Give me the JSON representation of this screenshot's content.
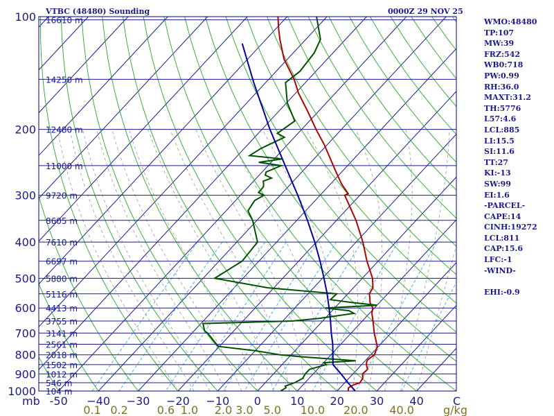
{
  "header": {
    "title": "VTBC (48480) Sounding",
    "timestamp": "0000Z 29 NOV 25"
  },
  "indices": [
    "WMO:48480",
    "TP:107",
    "MW:39",
    "FRZ:542",
    "WB0:718",
    "PW:0.99",
    "RH:36.0",
    "MAXT:31.2",
    "TH:5776",
    "L57:4.6",
    "LCL:885",
    "LI:15.5",
    "SI:11.6",
    "TT:27",
    "KI:-13",
    "SW:99",
    "EI:1.6",
    "-PARCEL-",
    "CAPE:14",
    "CINH:19272",
    "LCL:811",
    "CAP:15.6",
    "LFC:-1",
    "-WIND-",
    "",
    "EHI:-0.9"
  ],
  "chart_data": {
    "type": "line",
    "diagram": "skew-T log-P",
    "x_unit_label": "C",
    "y_unit_label": "mb",
    "x_ticks": [
      -50,
      -40,
      -30,
      -20,
      -10,
      0,
      10,
      20,
      30,
      40
    ],
    "x_tick_labels": [
      "-50",
      "−40",
      "−30",
      "−20",
      "−10",
      "0",
      "10",
      "20",
      "30",
      "40"
    ],
    "xlim": [
      -55,
      50
    ],
    "ylim": [
      1000,
      100
    ],
    "y_scale": "log",
    "pressure_ticks": [
      100,
      200,
      300,
      400,
      500,
      600,
      700,
      800,
      900,
      1000
    ],
    "mixing_ratio_labels": [
      "0.1",
      "0.2",
      "0.6",
      "1.0",
      "2.0",
      "3.0",
      "5.0",
      "10.0",
      "20.0",
      "40.0"
    ],
    "mixing_ratio_values": [
      0.1,
      0.2,
      0.6,
      1.0,
      2.0,
      3.0,
      5.0,
      10.0,
      20.0,
      40.0
    ],
    "mixing_ratio_unit": "g/kg",
    "height_labels": [
      {
        "p": 102,
        "label": "16610 m"
      },
      {
        "p": 147,
        "label": "14250 m"
      },
      {
        "p": 200,
        "label": "12480 m"
      },
      {
        "p": 250,
        "label": "11000 m"
      },
      {
        "p": 300,
        "label": "9720 m"
      },
      {
        "p": 350,
        "label": "8605 m"
      },
      {
        "p": 400,
        "label": "7610 m"
      },
      {
        "p": 450,
        "label": "6697 m"
      },
      {
        "p": 500,
        "label": "5880 m"
      },
      {
        "p": 550,
        "label": "5116 m"
      },
      {
        "p": 600,
        "label": "4413 m"
      },
      {
        "p": 650,
        "label": "3755 m"
      },
      {
        "p": 700,
        "label": "3141 m"
      },
      {
        "p": 750,
        "label": "2561 m"
      },
      {
        "p": 800,
        "label": "2018 m"
      },
      {
        "p": 850,
        "label": "1502 m"
      },
      {
        "p": 900,
        "label": "1012 m"
      },
      {
        "p": 950,
        "label": "546 m"
      },
      {
        "p": 1000,
        "label": "104 m"
      }
    ],
    "series": [
      {
        "color": "#b00000",
        "points": [
          [
            1000,
            22.8
          ],
          [
            980,
            22.1
          ],
          [
            965,
            22.6
          ],
          [
            950,
            23.8
          ],
          [
            925,
            23.5
          ],
          [
            900,
            22.4
          ],
          [
            875,
            22.6
          ],
          [
            850,
            21.2
          ],
          [
            835,
            20.6
          ],
          [
            825,
            20.4
          ],
          [
            800,
            20.9
          ],
          [
            785,
            20.5
          ],
          [
            760,
            19.7
          ],
          [
            700,
            15.8
          ],
          [
            650,
            12.7
          ],
          [
            620,
            10.6
          ],
          [
            600,
            9.6
          ],
          [
            580,
            7.6
          ],
          [
            560,
            6.2
          ],
          [
            550,
            5.4
          ],
          [
            530,
            4.9
          ],
          [
            500,
            2.6
          ],
          [
            450,
            -2.8
          ],
          [
            400,
            -8.3
          ],
          [
            350,
            -15.1
          ],
          [
            300,
            -23.8
          ],
          [
            297,
            -23.3
          ],
          [
            280,
            -27.2
          ],
          [
            260,
            -31.4
          ],
          [
            250,
            -33.6
          ],
          [
            220,
            -40.7
          ],
          [
            200,
            -46.4
          ],
          [
            180,
            -52.4
          ],
          [
            160,
            -59.3
          ],
          [
            147,
            -63.6
          ],
          [
            130,
            -70.8
          ],
          [
            115,
            -76.5
          ],
          [
            108,
            -79.2
          ],
          [
            100,
            -82.3
          ]
        ]
      },
      {
        "color": "#005000",
        "points": [
          [
            1000,
            5.8
          ],
          [
            980,
            6.4
          ],
          [
            970,
            5.8
          ],
          [
            950,
            7.4
          ],
          [
            925,
            8.4
          ],
          [
            900,
            8.0
          ],
          [
            875,
            8.0
          ],
          [
            850,
            11.1
          ],
          [
            840,
            10.1
          ],
          [
            830,
            17.6
          ],
          [
            810,
            3.1
          ],
          [
            800,
            -2.8
          ],
          [
            780,
            -10.1
          ],
          [
            760,
            -20.3
          ],
          [
            700,
            -26.1
          ],
          [
            690,
            -27.4
          ],
          [
            660,
            -29.5
          ],
          [
            650,
            -7.6
          ],
          [
            640,
            -1.5
          ],
          [
            620,
            6.1
          ],
          [
            610,
            4.2
          ],
          [
            600,
            -2.3
          ],
          [
            590,
            10.0
          ],
          [
            580,
            3.0
          ],
          [
            570,
            -3.0
          ],
          [
            550,
            -2.8
          ],
          [
            530,
            -21.5
          ],
          [
            500,
            -37.1
          ],
          [
            450,
            -34.2
          ],
          [
            400,
            -34.8
          ],
          [
            350,
            -41.1
          ],
          [
            330,
            -44.5
          ],
          [
            310,
            -45.2
          ],
          [
            300,
            -44.1
          ],
          [
            295,
            -46.1
          ],
          [
            285,
            -46.2
          ],
          [
            280,
            -46.8
          ],
          [
            275,
            -47.6
          ],
          [
            270,
            -46.2
          ],
          [
            265,
            -48.5
          ],
          [
            260,
            -49.0
          ],
          [
            250,
            -46.7
          ],
          [
            245,
            -53.1
          ],
          [
            240,
            -48.0
          ],
          [
            235,
            -57.0
          ],
          [
            225,
            -55.8
          ],
          [
            210,
            -52.5
          ],
          [
            205,
            -55.2
          ],
          [
            200,
            -54.7
          ],
          [
            190,
            -53.7
          ],
          [
            170,
            -59.8
          ],
          [
            150,
            -65.0
          ],
          [
            140,
            -64.0
          ],
          [
            125,
            -64.7
          ],
          [
            115,
            -66.3
          ],
          [
            100,
            -72.6
          ]
        ]
      },
      {
        "color": "#0000a0",
        "points": [
          [
            1000,
            24.6
          ],
          [
            950,
            20.8
          ],
          [
            900,
            17.0
          ],
          [
            850,
            12.8
          ],
          [
            811,
            11.0
          ],
          [
            750,
            8.0
          ],
          [
            700,
            5.0
          ],
          [
            650,
            2.0
          ],
          [
            600,
            -1.4
          ],
          [
            550,
            -5.2
          ],
          [
            500,
            -9.6
          ],
          [
            450,
            -14.6
          ],
          [
            400,
            -20.4
          ],
          [
            350,
            -27.3
          ],
          [
            300,
            -35.6
          ],
          [
            250,
            -45.7
          ],
          [
            200,
            -58.0
          ],
          [
            150,
            -73.0
          ],
          [
            118,
            -85.0
          ]
        ]
      }
    ]
  }
}
